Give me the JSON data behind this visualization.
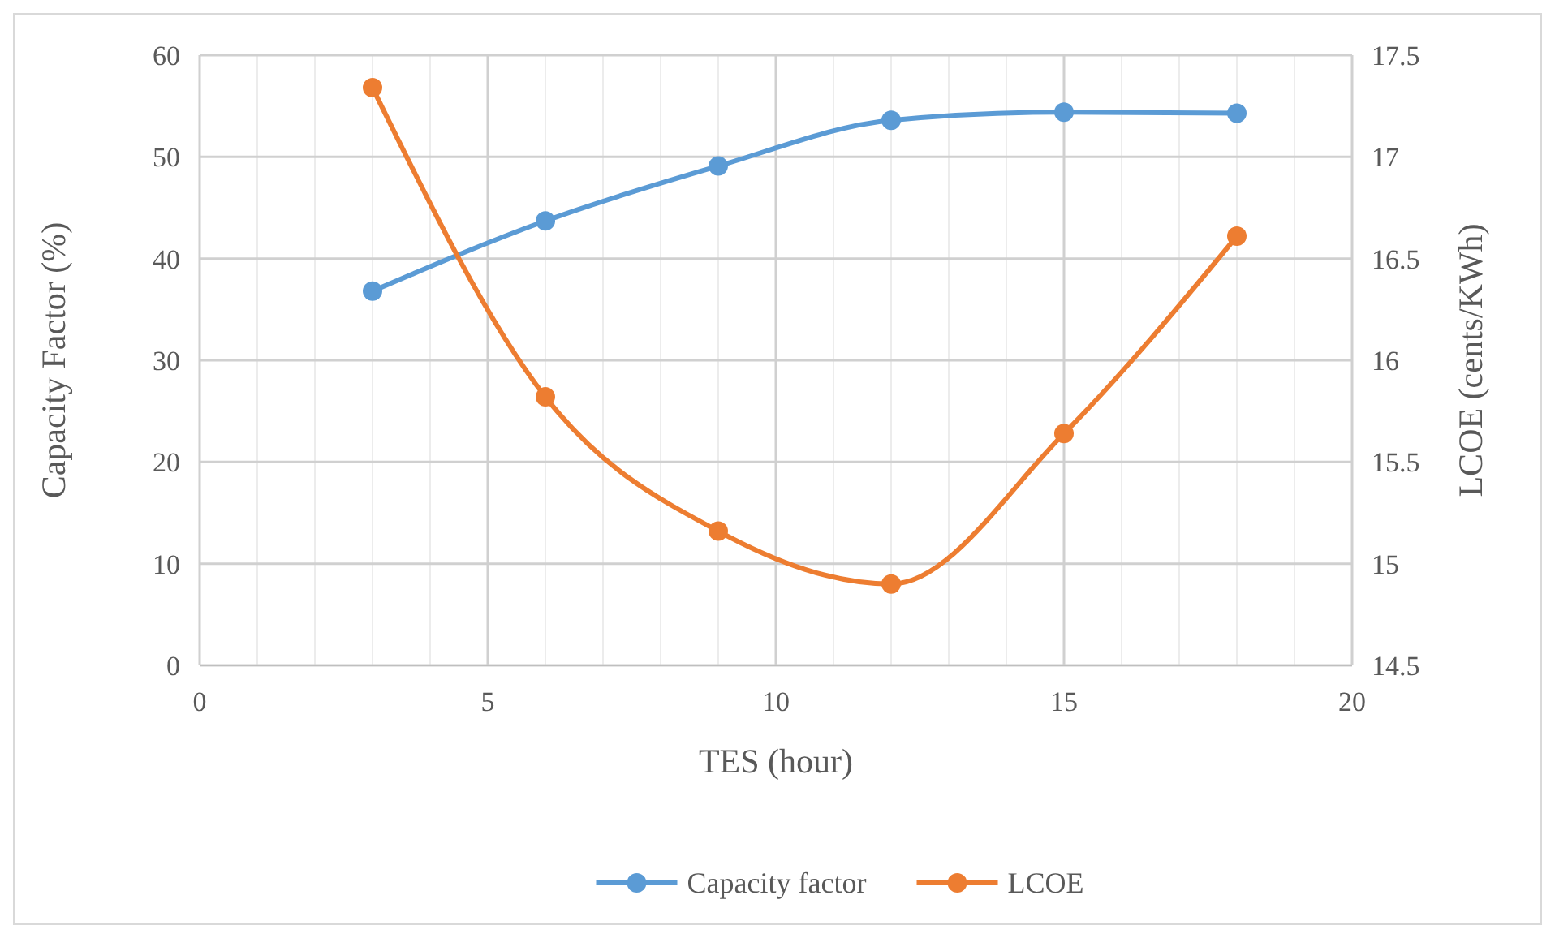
{
  "chart_data": {
    "type": "line",
    "xlabel": "TES (hour)",
    "ylabel": "Capacity Factor (%)",
    "y2label": "LCOE (cents/KWh)",
    "xlim": [
      0,
      20
    ],
    "xticks": [
      0,
      {
        "value": 1,
        "label": null
      },
      {
        "value": 2,
        "label": null
      },
      {
        "value": 3,
        "label": null
      },
      {
        "value": 4,
        "label": null
      },
      5,
      {
        "value": 6,
        "label": null
      },
      {
        "value": 7,
        "label": null
      },
      {
        "value": 8,
        "label": null
      },
      {
        "value": 9,
        "label": null
      },
      10,
      {
        "value": 11,
        "label": null
      },
      {
        "value": 12,
        "label": null
      },
      {
        "value": 13,
        "label": null
      },
      {
        "value": 14,
        "label": null
      },
      15,
      {
        "value": 16,
        "label": null
      },
      {
        "value": 17,
        "label": null
      },
      {
        "value": 18,
        "label": null
      },
      {
        "value": 19,
        "label": null
      },
      20
    ],
    "ylim": [
      0,
      60
    ],
    "yticks": [
      0,
      10,
      20,
      30,
      40,
      50,
      60
    ],
    "y2lim": [
      14.5,
      17.5
    ],
    "y2ticks": [
      14.5,
      15,
      15.5,
      16,
      16.5,
      17,
      17.5
    ],
    "grid": true,
    "legend": "bottom",
    "marker": "circle",
    "line_style": "solid",
    "series": [
      {
        "name": "Capacity factor",
        "color": "#5b9bd5",
        "x": [
          3,
          6,
          9,
          12,
          15,
          18
        ],
        "values": [
          36.8,
          43.7,
          49.1,
          53.6,
          54.4,
          54.3
        ]
      },
      {
        "name": "LCOE",
        "color": "#ed7d31",
        "axis": "y2",
        "x": [
          3,
          6,
          9,
          12,
          15,
          18
        ],
        "values": [
          17.34,
          15.82,
          15.16,
          14.9,
          15.64,
          16.61
        ]
      }
    ]
  }
}
